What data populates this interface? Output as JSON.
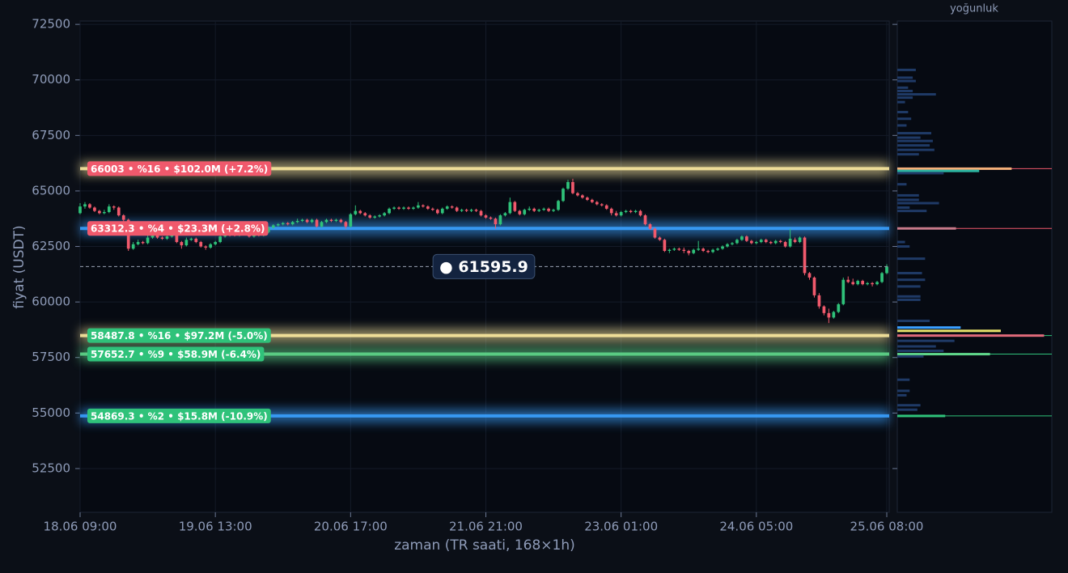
{
  "chart_data": {
    "type": "candlestick",
    "y_label": "fiyat (USDT)",
    "x_label": "zaman (TR saati, 168×1h)",
    "panel_title": "yoğunluk",
    "up_color": "#2fc27a",
    "down_color": "#f0596c",
    "xlim": [
      0,
      167.5
    ],
    "ylim": [
      50530,
      72650
    ],
    "xticks": [
      {
        "value": 0,
        "label": "18.06 09:00"
      },
      {
        "value": 28,
        "label": "19.06 13:00"
      },
      {
        "value": 56,
        "label": "20.06 17:00"
      },
      {
        "value": 84,
        "label": "21.06 21:00"
      },
      {
        "value": 112,
        "label": "23.06 01:00"
      },
      {
        "value": 140,
        "label": "24.06 05:00"
      },
      {
        "value": 167,
        "label": "25.06 08:00"
      }
    ],
    "yticks": [
      52500,
      55000,
      57500,
      60000,
      62500,
      65000,
      67500,
      70000,
      72500
    ],
    "grid": true,
    "candles": [
      [
        64000,
        64450,
        63950,
        64300
      ],
      [
        64300,
        64500,
        64200,
        64400
      ],
      [
        64400,
        64450,
        64200,
        64250
      ],
      [
        64250,
        64300,
        64050,
        64100
      ],
      [
        64100,
        64150,
        63950,
        64000
      ],
      [
        64000,
        64150,
        63950,
        64050
      ],
      [
        64050,
        64400,
        64000,
        64300
      ],
      [
        64300,
        64350,
        64150,
        64250
      ],
      [
        64250,
        64300,
        63850,
        63900
      ],
      [
        63900,
        63950,
        63600,
        63700
      ],
      [
        63700,
        63750,
        62300,
        62400
      ],
      [
        62400,
        62700,
        62350,
        62600
      ],
      [
        62600,
        62800,
        62550,
        62700
      ],
      [
        62700,
        62750,
        62600,
        62650
      ],
      [
        62650,
        63000,
        62600,
        62900
      ],
      [
        62900,
        63100,
        62850,
        63000
      ],
      [
        63000,
        63050,
        62850,
        62900
      ],
      [
        62900,
        62950,
        62800,
        62850
      ],
      [
        62850,
        63000,
        62800,
        62950
      ],
      [
        62950,
        63150,
        62900,
        63000
      ],
      [
        63000,
        63050,
        62650,
        62700
      ],
      [
        62700,
        62750,
        62400,
        62550
      ],
      [
        62550,
        62900,
        62500,
        62800
      ],
      [
        62800,
        62900,
        62750,
        62850
      ],
      [
        62850,
        62900,
        62650,
        62700
      ],
      [
        62700,
        62750,
        62450,
        62500
      ],
      [
        62500,
        62550,
        62350,
        62450
      ],
      [
        62450,
        62650,
        62400,
        62600
      ],
      [
        62600,
        62750,
        62550,
        62700
      ],
      [
        62700,
        63000,
        62650,
        62950
      ],
      [
        62950,
        63200,
        62900,
        63100
      ],
      [
        63100,
        63150,
        62950,
        63050
      ],
      [
        63050,
        63100,
        62950,
        63000
      ],
      [
        63000,
        63150,
        62950,
        63100
      ],
      [
        63100,
        63150,
        63000,
        63050
      ],
      [
        63050,
        63100,
        62900,
        62950
      ],
      [
        62950,
        63100,
        62900,
        63050
      ],
      [
        63050,
        63100,
        62950,
        63000
      ],
      [
        63000,
        63200,
        62950,
        63150
      ],
      [
        63150,
        63400,
        63100,
        63350
      ],
      [
        63350,
        63500,
        63300,
        63450
      ],
      [
        63450,
        63550,
        63400,
        63500
      ],
      [
        63500,
        63600,
        63450,
        63550
      ],
      [
        63550,
        63600,
        63450,
        63500
      ],
      [
        63500,
        63650,
        63450,
        63600
      ],
      [
        63600,
        63750,
        63550,
        63650
      ],
      [
        63650,
        63750,
        63600,
        63700
      ],
      [
        63700,
        63750,
        63550,
        63600
      ],
      [
        63600,
        63750,
        63550,
        63700
      ],
      [
        63700,
        63750,
        63350,
        63400
      ],
      [
        63400,
        63650,
        63350,
        63600
      ],
      [
        63600,
        63750,
        63550,
        63700
      ],
      [
        63700,
        63750,
        63600,
        63650
      ],
      [
        63650,
        63750,
        63600,
        63700
      ],
      [
        63700,
        63750,
        63550,
        63600
      ],
      [
        63600,
        63650,
        63300,
        63400
      ],
      [
        63400,
        64000,
        63350,
        63950
      ],
      [
        63950,
        64350,
        63900,
        64100
      ],
      [
        64100,
        64150,
        63950,
        64000
      ],
      [
        64000,
        64050,
        63850,
        63900
      ],
      [
        63900,
        63950,
        63750,
        63800
      ],
      [
        63800,
        63900,
        63750,
        63850
      ],
      [
        63850,
        63950,
        63800,
        63900
      ],
      [
        63900,
        64050,
        63850,
        64000
      ],
      [
        64000,
        64250,
        63950,
        64200
      ],
      [
        64200,
        64300,
        64150,
        64250
      ],
      [
        64250,
        64300,
        64150,
        64200
      ],
      [
        64200,
        64300,
        64150,
        64250
      ],
      [
        64250,
        64300,
        64150,
        64200
      ],
      [
        64200,
        64300,
        64150,
        64250
      ],
      [
        64250,
        64500,
        64200,
        64350
      ],
      [
        64350,
        64400,
        64250,
        64300
      ],
      [
        64300,
        64350,
        64150,
        64200
      ],
      [
        64200,
        64250,
        64100,
        64150
      ],
      [
        64150,
        64200,
        63950,
        64000
      ],
      [
        64000,
        64250,
        63950,
        64200
      ],
      [
        64200,
        64350,
        64150,
        64300
      ],
      [
        64300,
        64350,
        64200,
        64250
      ],
      [
        64250,
        64300,
        64050,
        64100
      ],
      [
        64100,
        64200,
        64050,
        64150
      ],
      [
        64150,
        64200,
        64050,
        64100
      ],
      [
        64100,
        64200,
        64050,
        64150
      ],
      [
        64150,
        64200,
        64050,
        64100
      ],
      [
        64100,
        64150,
        63850,
        63900
      ],
      [
        63900,
        63950,
        63750,
        63800
      ],
      [
        63800,
        63850,
        63700,
        63750
      ],
      [
        63750,
        63800,
        63300,
        63500
      ],
      [
        63500,
        63950,
        63450,
        63900
      ],
      [
        63900,
        64050,
        63850,
        64000
      ],
      [
        64000,
        64700,
        63950,
        64500
      ],
      [
        64500,
        64550,
        64050,
        64100
      ],
      [
        64100,
        64150,
        63900,
        63950
      ],
      [
        63950,
        64200,
        63900,
        64150
      ],
      [
        64150,
        64300,
        64100,
        64200
      ],
      [
        64200,
        64250,
        64050,
        64100
      ],
      [
        64100,
        64200,
        64050,
        64150
      ],
      [
        64150,
        64250,
        64100,
        64200
      ],
      [
        64200,
        64250,
        64050,
        64100
      ],
      [
        64100,
        64200,
        64050,
        64150
      ],
      [
        64150,
        64600,
        64100,
        64550
      ],
      [
        64550,
        65150,
        64500,
        65100
      ],
      [
        65100,
        65500,
        65050,
        65400
      ],
      [
        65400,
        65550,
        64850,
        64900
      ],
      [
        64900,
        64950,
        64750,
        64800
      ],
      [
        64800,
        64850,
        64650,
        64700
      ],
      [
        64700,
        64750,
        64550,
        64600
      ],
      [
        64600,
        64650,
        64450,
        64500
      ],
      [
        64500,
        64550,
        64350,
        64400
      ],
      [
        64400,
        64450,
        64300,
        64350
      ],
      [
        64350,
        64400,
        64150,
        64200
      ],
      [
        64200,
        64250,
        63900,
        64000
      ],
      [
        64000,
        64100,
        63850,
        63900
      ],
      [
        63900,
        64100,
        63850,
        64050
      ],
      [
        64050,
        64150,
        64000,
        64100
      ],
      [
        64100,
        64150,
        64000,
        64050
      ],
      [
        64050,
        64150,
        64000,
        64100
      ],
      [
        64100,
        64150,
        63850,
        63900
      ],
      [
        63900,
        63950,
        63450,
        63500
      ],
      [
        63500,
        63550,
        63250,
        63300
      ],
      [
        63300,
        63350,
        62850,
        62900
      ],
      [
        62900,
        62950,
        62750,
        62800
      ],
      [
        62800,
        62850,
        62250,
        62300
      ],
      [
        62300,
        62400,
        62200,
        62350
      ],
      [
        62350,
        62450,
        62300,
        62400
      ],
      [
        62400,
        62450,
        62300,
        62350
      ],
      [
        62350,
        62450,
        62200,
        62300
      ],
      [
        62300,
        62350,
        62100,
        62200
      ],
      [
        62200,
        62400,
        62150,
        62350
      ],
      [
        62350,
        62750,
        62300,
        62400
      ],
      [
        62400,
        62450,
        62250,
        62300
      ],
      [
        62300,
        62350,
        62200,
        62250
      ],
      [
        62250,
        62400,
        62200,
        62350
      ],
      [
        62350,
        62450,
        62300,
        62400
      ],
      [
        62400,
        62550,
        62350,
        62500
      ],
      [
        62500,
        62650,
        62450,
        62600
      ],
      [
        62600,
        62700,
        62550,
        62650
      ],
      [
        62650,
        62850,
        62600,
        62800
      ],
      [
        62800,
        63000,
        62750,
        62950
      ],
      [
        62950,
        63000,
        62700,
        62750
      ],
      [
        62750,
        62800,
        62600,
        62650
      ],
      [
        62650,
        62750,
        62600,
        62700
      ],
      [
        62700,
        62850,
        62650,
        62800
      ],
      [
        62800,
        62850,
        62650,
        62700
      ],
      [
        62700,
        62750,
        62600,
        62650
      ],
      [
        62650,
        62800,
        62600,
        62750
      ],
      [
        62750,
        62800,
        62650,
        62700
      ],
      [
        62700,
        62750,
        62450,
        62500
      ],
      [
        62500,
        63300,
        62450,
        62850
      ],
      [
        62800,
        62900,
        62650,
        62700
      ],
      [
        62700,
        62950,
        62650,
        62900
      ],
      [
        62900,
        62950,
        61200,
        61300
      ],
      [
        61300,
        61350,
        61000,
        61100
      ],
      [
        61100,
        61150,
        60200,
        60300
      ],
      [
        60300,
        60400,
        59700,
        59800
      ],
      [
        59800,
        59850,
        59400,
        59500
      ],
      [
        59500,
        59700,
        59050,
        59300
      ],
      [
        59300,
        59600,
        59250,
        59550
      ],
      [
        59550,
        59950,
        59500,
        59900
      ],
      [
        59900,
        61100,
        59850,
        61000
      ],
      [
        61000,
        61150,
        60850,
        60900
      ],
      [
        60900,
        61050,
        60750,
        60800
      ],
      [
        60800,
        61000,
        60750,
        60950
      ],
      [
        60950,
        61000,
        60750,
        60800
      ],
      [
        60800,
        60900,
        60750,
        60850
      ],
      [
        60850,
        60900,
        60700,
        60800
      ],
      [
        60800,
        60950,
        60750,
        60900
      ],
      [
        60900,
        61350,
        60850,
        61300
      ],
      [
        61300,
        61700,
        61250,
        61595.9
      ]
    ],
    "current_price": 61595.9,
    "current_label": "● 61595.9",
    "levels": [
      {
        "price": 66003,
        "label": "66003 • %16 • $102.0M (+7.2%)",
        "band_color": "#fbe9a0",
        "label_color": "#f0596c"
      },
      {
        "price": 63312.3,
        "label": "63312.3 • %4 • $23.3M (+2.8%)",
        "band_color": "#3aa0ff",
        "label_color": "#f0596c"
      },
      {
        "price": 58487.8,
        "label": "58487.8 • %16 • $97.2M (-5.0%)",
        "band_color": "#fbe9a0",
        "label_color": "#2fc27a"
      },
      {
        "price": 57652.7,
        "label": "57652.7 • %9 • $58.9M (-6.4%)",
        "band_color": "#5fd68a",
        "label_color": "#2fc27a"
      },
      {
        "price": 54869.3,
        "label": "54869.3 • %2 • $15.8M (-10.9%)",
        "band_color": "#3aa0ff",
        "label_color": "#2fc27a"
      }
    ],
    "density": {
      "xlim": [
        0,
        100
      ],
      "bar_color": "#1f3a66",
      "prices": [
        70450,
        70100,
        69950,
        69650,
        69500,
        69350,
        69200,
        69000,
        68550,
        68250,
        67950,
        67600,
        67400,
        67250,
        67050,
        66850,
        66650,
        66003,
        65900,
        65800,
        65300,
        64800,
        64600,
        64450,
        64250,
        64100,
        63312,
        62700,
        62500,
        61950,
        61300,
        61000,
        60700,
        60250,
        60100,
        59150,
        58850,
        58700,
        58487,
        58250,
        58000,
        57800,
        57652,
        57550,
        56500,
        56000,
        55800,
        55350,
        55150,
        54869
      ],
      "values": [
        12,
        10,
        12,
        7,
        10,
        25,
        10,
        5,
        7,
        9,
        6,
        22,
        15,
        23,
        21,
        24,
        14,
        74,
        53,
        30,
        6,
        14,
        14,
        27,
        8,
        19,
        38,
        5,
        8,
        18,
        16,
        18,
        15,
        15,
        15,
        21,
        41,
        67,
        95,
        37,
        25,
        30,
        60,
        17,
        8,
        8,
        6,
        15,
        13,
        31
      ],
      "colors": [
        null,
        null,
        null,
        null,
        null,
        null,
        null,
        null,
        null,
        null,
        null,
        null,
        null,
        null,
        null,
        null,
        null,
        "#f5b07a",
        "#2bb3a0",
        null,
        null,
        null,
        null,
        null,
        null,
        null,
        "#c87a8a",
        null,
        null,
        null,
        null,
        null,
        null,
        null,
        null,
        null,
        "#3aa0ff",
        "#e6e06a",
        "#e06a7a",
        null,
        null,
        null,
        "#5fd68a",
        null,
        null,
        null,
        null,
        null,
        null,
        "#2fc27a"
      ]
    }
  }
}
